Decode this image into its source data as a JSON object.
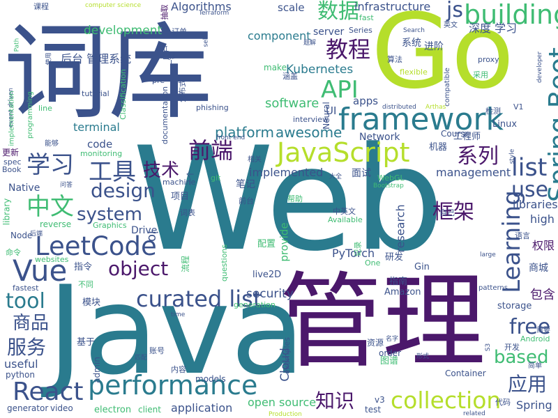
{
  "words": [
    {
      "text": "Web",
      "color": "#2a7b8e"
    },
    {
      "text": "Java",
      "color": "#2a7b8e"
    },
    {
      "text": "管理",
      "color": "#4b186b"
    },
    {
      "text": "Go",
      "color": "#b5de2b"
    },
    {
      "text": "词库",
      "color": "#3b528b"
    },
    {
      "text": "framework",
      "color": "#2a7b8e"
    },
    {
      "text": "JavaScript",
      "color": "#b5de2b"
    },
    {
      "text": "performance",
      "color": "#2a7b8e"
    },
    {
      "text": "Spring Boot",
      "color": "#2a7b8e"
    },
    {
      "text": "building",
      "color": "#3fbc73"
    },
    {
      "text": "React",
      "color": "#3b528b"
    },
    {
      "text": "Vue",
      "color": "#3b528b"
    },
    {
      "text": "LeetCode",
      "color": "#3b528b"
    },
    {
      "text": "curated list",
      "color": "#3b528b"
    },
    {
      "text": "collection",
      "color": "#b5de2b"
    },
    {
      "text": "Learning",
      "color": "#3b528b"
    },
    {
      "text": "前端",
      "color": "#4b186b"
    },
    {
      "text": "学习",
      "color": "#3b528b"
    },
    {
      "text": "工具",
      "color": "#3b528b"
    },
    {
      "text": "中文",
      "color": "#3fbc73"
    },
    {
      "text": "数据",
      "color": "#3fbc73"
    },
    {
      "text": "教程",
      "color": "#4b186b"
    },
    {
      "text": "API",
      "color": "#3fbc73"
    },
    {
      "text": "list",
      "color": "#3b528b"
    },
    {
      "text": "系列",
      "color": "#4b186b"
    },
    {
      "text": "design",
      "color": "#3b528b"
    },
    {
      "text": "system",
      "color": "#3b528b"
    },
    {
      "text": "object",
      "color": "#4b186b"
    },
    {
      "text": "tool",
      "color": "#2a7b8e"
    },
    {
      "text": "框架",
      "color": "#4b186b"
    },
    {
      "text": "free",
      "color": "#3b528b"
    },
    {
      "text": "based",
      "color": "#3fbc73"
    },
    {
      "text": "应用",
      "color": "#3b528b"
    },
    {
      "text": "use",
      "color": "#3b528b"
    },
    {
      "text": "知识",
      "color": "#4b186b"
    },
    {
      "text": "服务",
      "color": "#3b528b"
    },
    {
      "text": "商品",
      "color": "#3b528b"
    },
    {
      "text": "技术",
      "color": "#4b186b"
    },
    {
      "text": "js",
      "color": "#3b528b"
    },
    {
      "text": "platform",
      "color": "#2a7b8e"
    },
    {
      "text": "awesome",
      "color": "#2a7b8e"
    },
    {
      "text": "software",
      "color": "#3fbc73"
    },
    {
      "text": "security",
      "color": "#3b528b"
    },
    {
      "text": "Kubernetes",
      "color": "#2a7b8e"
    },
    {
      "text": "development",
      "color": "#3fbc73"
    },
    {
      "text": "Algorithms",
      "color": "#3b528b"
    },
    {
      "text": "infrastructure",
      "color": "#3b528b"
    },
    {
      "text": "component",
      "color": "#2a7b8e"
    },
    {
      "text": "terminal",
      "color": "#2a7b8e"
    },
    {
      "text": "implemented",
      "color": "#3b528b"
    },
    {
      "text": "深度 学习",
      "color": "#3b528b"
    },
    {
      "text": "后台 管理系统",
      "color": "#3b528b"
    },
    {
      "text": "PyTorch",
      "color": "#3b528b"
    },
    {
      "text": "open source",
      "color": "#3fbc73"
    },
    {
      "text": "Spring",
      "color": "#3b528b"
    },
    {
      "text": "libraries",
      "color": "#3b528b"
    },
    {
      "text": "management",
      "color": "#3b528b"
    },
    {
      "text": "research",
      "color": "#3b528b"
    },
    {
      "text": "Cloud",
      "color": "#3b528b"
    },
    {
      "text": "high",
      "color": "#3b528b"
    },
    {
      "text": "权限",
      "color": "#4b186b"
    },
    {
      "text": "包含",
      "color": "#4b186b"
    },
    {
      "text": "useful",
      "color": "#3b528b"
    },
    {
      "text": "application",
      "color": "#3b528b"
    },
    {
      "text": "electron",
      "color": "#3fbc73"
    },
    {
      "text": "code",
      "color": "#3b528b"
    },
    {
      "text": "io",
      "color": "#3b528b"
    },
    {
      "text": "apps",
      "color": "#3b528b"
    },
    {
      "text": "UI",
      "color": "#3b528b"
    },
    {
      "text": "provide",
      "color": "#3fbc73"
    },
    {
      "text": "server",
      "color": "#3b528b"
    },
    {
      "text": "scale",
      "color": "#3b528b"
    },
    {
      "text": "Network",
      "color": "#3b528b"
    },
    {
      "text": "Native",
      "color": "#3b528b"
    },
    {
      "text": "Drive",
      "color": "#3b528b"
    },
    {
      "text": "商城",
      "color": "#3b528b"
    },
    {
      "text": "笔记",
      "color": "#3b528b"
    },
    {
      "text": "面试",
      "color": "#3b528b"
    },
    {
      "text": "系统",
      "color": "#3b528b"
    },
    {
      "text": "进阶",
      "color": "#3b528b"
    },
    {
      "text": "Linux",
      "color": "#3b528b"
    },
    {
      "text": "工程师",
      "color": "#3b528b"
    },
    {
      "text": "机器",
      "color": "#3b528b"
    },
    {
      "text": "项目",
      "color": "#3b528b"
    },
    {
      "text": "模块",
      "color": "#3b528b"
    },
    {
      "text": "基于",
      "color": "#3b528b"
    },
    {
      "text": "指令",
      "color": "#3b528b"
    },
    {
      "text": "配置",
      "color": "#3fbc73"
    },
    {
      "text": "研发",
      "color": "#3b528b"
    },
    {
      "text": "指南",
      "color": "#3b528b"
    },
    {
      "text": "Gin",
      "color": "#3b528b"
    },
    {
      "text": "Amazon",
      "color": "#3b528b"
    },
    {
      "text": "storage",
      "color": "#3b528b"
    },
    {
      "text": "live2D",
      "color": "#3b528b"
    },
    {
      "text": "examples",
      "color": "#3b528b"
    },
    {
      "text": "test",
      "color": "#3b528b"
    },
    {
      "text": "v3",
      "color": "#3b528b"
    },
    {
      "text": "order",
      "color": "#3b528b"
    },
    {
      "text": "图谱",
      "color": "#3fbc73"
    },
    {
      "text": "资源",
      "color": "#3b528b"
    },
    {
      "text": "Container",
      "color": "#3b528b"
    },
    {
      "text": "models",
      "color": "#3b528b"
    },
    {
      "text": "generation",
      "color": "#3fbc73"
    },
    {
      "text": "admin",
      "color": "#3b528b"
    },
    {
      "text": "python",
      "color": "#3b528b"
    },
    {
      "text": "generator",
      "color": "#3b528b"
    },
    {
      "text": "video",
      "color": "#3b528b"
    },
    {
      "text": "client",
      "color": "#3fbc73"
    },
    {
      "text": "fastest",
      "color": "#3b528b"
    },
    {
      "text": "websites",
      "color": "#3fbc73"
    },
    {
      "text": "Node",
      "color": "#3b528b"
    },
    {
      "text": "library",
      "color": "#3fbc73"
    },
    {
      "text": "reverse",
      "color": "#3fbc73"
    },
    {
      "text": "Graphics",
      "color": "#3fbc73"
    },
    {
      "text": "tutorial",
      "color": "#3b528b"
    },
    {
      "text": "documentation",
      "color": "#3b528b"
    },
    {
      "text": "Classification",
      "color": "#3fbc73"
    },
    {
      "text": "monitoring",
      "color": "#3fbc73"
    },
    {
      "text": "phishing",
      "color": "#3b528b"
    },
    {
      "text": "interview",
      "color": "#3b528b"
    },
    {
      "text": "Course",
      "color": "#3b528b"
    },
    {
      "text": "Series",
      "color": "#3b528b"
    },
    {
      "text": "fast",
      "color": "#3fbc73"
    },
    {
      "text": "flexible",
      "color": "#b5de2b"
    },
    {
      "text": "proxy",
      "color": "#3b528b"
    },
    {
      "text": "算法",
      "color": "#3b528b"
    },
    {
      "text": "订单",
      "color": "#3b528b"
    },
    {
      "text": "课程",
      "color": "#3b528b"
    },
    {
      "text": "computer science",
      "color": "#b5de2b"
    },
    {
      "text": "Terraform",
      "color": "#3b528b"
    },
    {
      "text": "抽取",
      "color": "#4b186b"
    },
    {
      "text": "英文",
      "color": "#3b528b"
    },
    {
      "text": "self",
      "color": "#3b528b"
    },
    {
      "text": "题解",
      "color": "#3b528b"
    },
    {
      "text": "Search",
      "color": "#3b528b"
    },
    {
      "text": "Path",
      "color": "#3fbc73"
    },
    {
      "text": "使用",
      "color": "#3b528b"
    },
    {
      "text": "涵盖",
      "color": "#3b528b"
    },
    {
      "text": "make",
      "color": "#3fbc73"
    },
    {
      "text": "pre",
      "color": "#3b528b"
    },
    {
      "text": "line",
      "color": "#3fbc73"
    },
    {
      "text": "Neural",
      "color": "#3b528b"
    },
    {
      "text": "distributed",
      "color": "#3b528b"
    },
    {
      "text": "Arthas",
      "color": "#b5de2b"
    },
    {
      "text": "检测",
      "color": "#3b528b"
    },
    {
      "text": "V1",
      "color": "#3b528b"
    },
    {
      "text": "采用",
      "color": "#3fbc73"
    },
    {
      "text": "developer",
      "color": "#3b528b"
    },
    {
      "text": "compatible",
      "color": "#3b528b"
    },
    {
      "text": "event driven",
      "color": "#3b528b"
    },
    {
      "text": "implementation",
      "color": "#3fbc73"
    },
    {
      "text": "programming",
      "color": "#3fbc73"
    },
    {
      "text": "front end",
      "color": "#3b528b"
    },
    {
      "text": "更新",
      "color": "#4b186b"
    },
    {
      "text": "spec",
      "color": "#3b528b"
    },
    {
      "text": "Book",
      "color": "#3b528b"
    },
    {
      "text": "能够",
      "color": "#3b528b"
    },
    {
      "text": "相关",
      "color": "#3b528b"
    },
    {
      "text": "大全",
      "color": "#3b528b"
    },
    {
      "text": "WebGL",
      "color": "#3fbc73"
    },
    {
      "text": "Bootstrap",
      "color": "#3fbc73"
    },
    {
      "text": "style",
      "color": "#3b528b"
    },
    {
      "text": "Android",
      "color": "#3fbc73"
    },
    {
      "text": "需要",
      "color": "#3b528b"
    },
    {
      "text": "问答",
      "color": "#3b528b"
    },
    {
      "text": "machine",
      "color": "#3b528b"
    },
    {
      "text": "一个",
      "color": "#3b528b"
    },
    {
      "text": "git",
      "color": "#3fbc73"
    },
    {
      "text": "词表",
      "color": "#3b528b"
    },
    {
      "text": "前台",
      "color": "#3b528b"
    },
    {
      "text": "帮助",
      "color": "#3fbc73"
    },
    {
      "text": "中英文",
      "color": "#3b528b"
    },
    {
      "text": "Available",
      "color": "#3fbc73"
    },
    {
      "text": "自己",
      "color": "#3b528b"
    },
    {
      "text": "语言",
      "color": "#3b528b"
    },
    {
      "text": "large",
      "color": "#3b528b"
    },
    {
      "text": "记录",
      "color": "#3fbc73"
    },
    {
      "text": "One",
      "color": "#3fbc73"
    },
    {
      "text": "questions",
      "color": "#3fbc73"
    },
    {
      "text": "流程",
      "color": "#3fbc73"
    },
    {
      "text": "后端",
      "color": "#3b528b"
    },
    {
      "text": "命令",
      "color": "#3fbc73"
    },
    {
      "text": "不同",
      "color": "#3fbc73"
    },
    {
      "text": "time",
      "color": "#3b528b"
    },
    {
      "text": "patterns",
      "color": "#3b528b"
    },
    {
      "text": "开发",
      "color": "#3b528b"
    },
    {
      "text": "S3",
      "color": "#3b528b"
    },
    {
      "text": "简单",
      "color": "#3b528b"
    },
    {
      "text": "名字",
      "color": "#3b528b"
    },
    {
      "text": "形式",
      "color": "#3b528b"
    },
    {
      "text": "账号",
      "color": "#3b528b"
    },
    {
      "text": "匹配",
      "color": "#3b528b"
    },
    {
      "text": "内容",
      "color": "#3b528b"
    },
    {
      "text": "Production",
      "color": "#b5de2b"
    },
    {
      "text": "related",
      "color": "#3b528b"
    },
    {
      "text": "代码",
      "color": "#3b528b"
    },
    {
      "text": "分布式",
      "color": "#3b528b"
    },
    {
      "text": "用户",
      "color": "#3b528b"
    },
    {
      "text": "一套",
      "color": "#3b528b"
    }
  ]
}
